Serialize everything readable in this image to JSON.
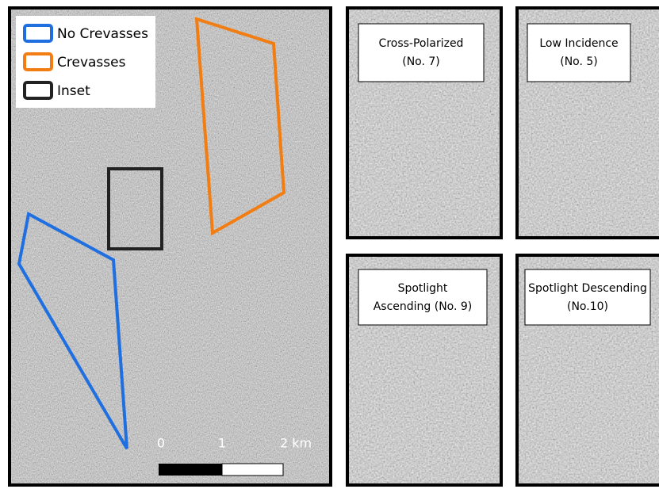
{
  "legend": {
    "items": [
      {
        "label": "No Crevasses"
      },
      {
        "label": "Crevasses"
      },
      {
        "label": "Inset"
      }
    ]
  },
  "scale_bar": {
    "labels": [
      "0",
      "1",
      "2 km"
    ]
  },
  "panels": [
    {
      "lines": [
        "Cross-Polarized",
        "(No. 7)"
      ]
    },
    {
      "lines": [
        "Low Incidence",
        "(No. 5)"
      ]
    },
    {
      "lines": [
        "Spotlight",
        "Ascending (No. 9)"
      ]
    },
    {
      "lines": [
        "Spotlight Descending",
        "(No.10)"
      ]
    }
  ]
}
